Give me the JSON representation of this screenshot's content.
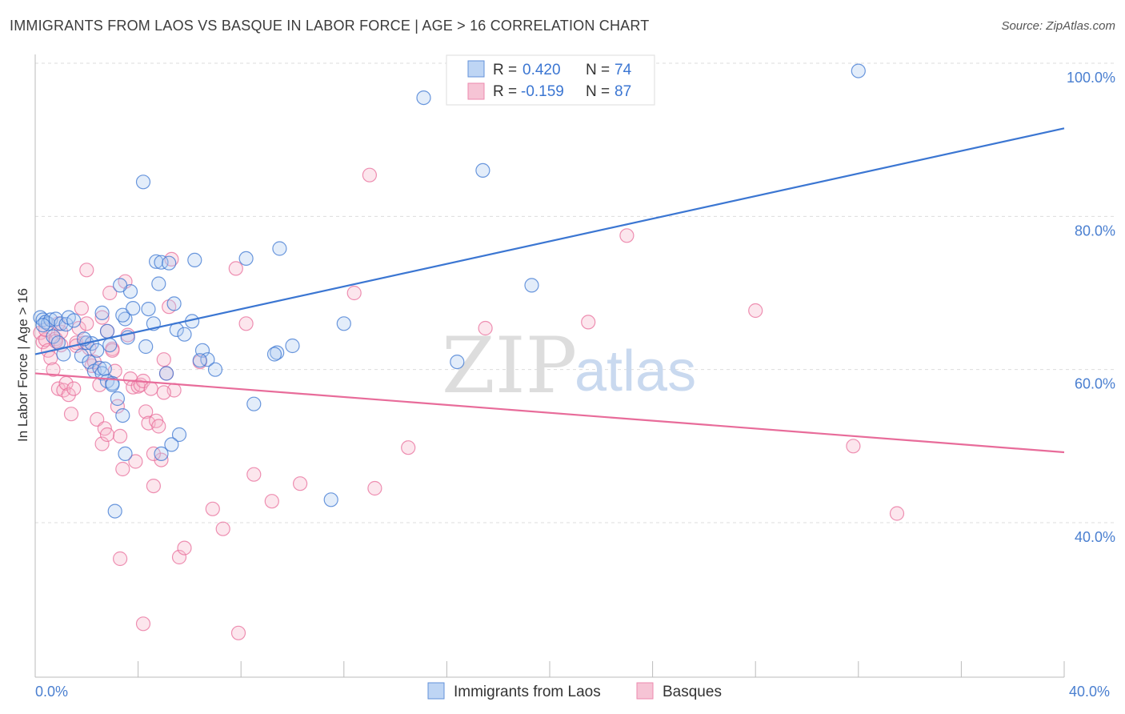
{
  "title": "IMMIGRANTS FROM LAOS VS BASQUE IN LABOR FORCE | AGE > 16 CORRELATION CHART",
  "source": "Source: ZipAtlas.com",
  "watermark": {
    "zip": "ZIP",
    "atlas": "atlas"
  },
  "colors": {
    "blue": "#3b76d2",
    "blue_fill": "#aecbf2",
    "pink": "#e86c9a",
    "pink_fill": "#f5b6cb",
    "grid": "#dddddd",
    "axis_text": "#4a7fd0"
  },
  "legend": {
    "rows": [
      {
        "r_label": "R =",
        "r_value": "0.420",
        "n_label": "N =",
        "n_value": "74"
      },
      {
        "r_label": "R =",
        "r_value": "-0.159",
        "n_label": "N =",
        "n_value": "87"
      }
    ]
  },
  "chart_data": {
    "type": "scatter",
    "title": "IMMIGRANTS FROM LAOS VS BASQUE IN LABOR FORCE | AGE > 16 CORRELATION CHART",
    "xlabel": "",
    "ylabel": "In Labor Force | Age > 16",
    "xlim": [
      0,
      40
    ],
    "ylim": [
      20,
      102
    ],
    "x_tick_labels": [
      "0.0%",
      "40.0%"
    ],
    "y_ticks": [
      40,
      60,
      80,
      100
    ],
    "y_tick_labels": [
      "40.0%",
      "60.0%",
      "80.0%",
      "100.0%"
    ],
    "grid": true,
    "legend_position": "top-center",
    "series": [
      {
        "name": "Immigrants from Laos",
        "color": "#3b76d2",
        "r": 0.42,
        "n": 74,
        "trend": {
          "x": [
            0,
            40
          ],
          "y": [
            62.0,
            91.5
          ]
        },
        "points": [
          [
            0.2,
            66.8
          ],
          [
            0.3,
            66.5
          ],
          [
            0.4,
            66.2
          ],
          [
            0.5,
            66.0
          ],
          [
            0.6,
            66.5
          ],
          [
            0.3,
            65.8
          ],
          [
            0.8,
            66.6
          ],
          [
            0.7,
            64.3
          ],
          [
            1.0,
            66.0
          ],
          [
            1.2,
            65.9
          ],
          [
            1.3,
            66.8
          ],
          [
            0.9,
            63.5
          ],
          [
            1.5,
            66.4
          ],
          [
            1.1,
            62.0
          ],
          [
            1.8,
            61.8
          ],
          [
            2.0,
            63.5
          ],
          [
            2.2,
            63.4
          ],
          [
            1.9,
            64.0
          ],
          [
            2.1,
            61.0
          ],
          [
            2.3,
            59.8
          ],
          [
            2.5,
            60.2
          ],
          [
            2.6,
            59.5
          ],
          [
            2.8,
            58.5
          ],
          [
            3.0,
            58.2
          ],
          [
            2.7,
            60.1
          ],
          [
            2.4,
            62.5
          ],
          [
            2.9,
            63.2
          ],
          [
            3.2,
            56.2
          ],
          [
            3.5,
            66.6
          ],
          [
            3.6,
            64.2
          ],
          [
            3.4,
            67.1
          ],
          [
            3.8,
            68.0
          ],
          [
            3.7,
            70.2
          ],
          [
            3.3,
            71.0
          ],
          [
            2.6,
            67.4
          ],
          [
            2.8,
            65.0
          ],
          [
            3.0,
            58.0
          ],
          [
            3.4,
            54.0
          ],
          [
            3.5,
            49.0
          ],
          [
            3.1,
            41.5
          ],
          [
            4.4,
            67.9
          ],
          [
            4.3,
            63.0
          ],
          [
            4.6,
            66.0
          ],
          [
            4.7,
            74.1
          ],
          [
            4.8,
            71.2
          ],
          [
            4.2,
            84.5
          ],
          [
            4.9,
            74.0
          ],
          [
            5.4,
            68.6
          ],
          [
            5.5,
            65.2
          ],
          [
            5.2,
            73.9
          ],
          [
            5.8,
            64.6
          ],
          [
            6.1,
            66.3
          ],
          [
            6.5,
            62.5
          ],
          [
            6.7,
            61.3
          ],
          [
            7.0,
            60.0
          ],
          [
            5.1,
            59.5
          ],
          [
            4.9,
            49.0
          ],
          [
            5.6,
            51.5
          ],
          [
            5.3,
            50.2
          ],
          [
            6.4,
            61.2
          ],
          [
            8.2,
            74.5
          ],
          [
            8.5,
            55.5
          ],
          [
            9.4,
            62.2
          ],
          [
            9.5,
            75.8
          ],
          [
            9.3,
            62.0
          ],
          [
            10.0,
            63.1
          ],
          [
            12.0,
            66.0
          ],
          [
            11.5,
            43.0
          ],
          [
            15.1,
            95.5
          ],
          [
            16.4,
            61.0
          ],
          [
            17.4,
            86.0
          ],
          [
            19.3,
            71.0
          ],
          [
            32.0,
            99.0
          ],
          [
            6.2,
            74.3
          ]
        ]
      },
      {
        "name": "Basques",
        "color": "#e86c9a",
        "r": -0.159,
        "n": 87,
        "trend": {
          "x": [
            0,
            40
          ],
          "y": [
            59.5,
            49.2
          ]
        },
        "points": [
          [
            0.2,
            64.8
          ],
          [
            0.3,
            63.6
          ],
          [
            0.4,
            63.9
          ],
          [
            0.5,
            62.5
          ],
          [
            0.6,
            61.5
          ],
          [
            0.7,
            60.0
          ],
          [
            0.8,
            64.0
          ],
          [
            0.9,
            57.5
          ],
          [
            1.0,
            63.2
          ],
          [
            1.1,
            57.3
          ],
          [
            1.2,
            58.2
          ],
          [
            1.3,
            56.7
          ],
          [
            1.4,
            54.2
          ],
          [
            1.5,
            57.5
          ],
          [
            1.6,
            63.5
          ],
          [
            1.7,
            65.4
          ],
          [
            1.8,
            68.0
          ],
          [
            1.9,
            63.5
          ],
          [
            2.0,
            66.0
          ],
          [
            2.1,
            62.8
          ],
          [
            2.2,
            60.5
          ],
          [
            2.3,
            61.0
          ],
          [
            2.4,
            53.5
          ],
          [
            2.5,
            58.0
          ],
          [
            2.6,
            50.3
          ],
          [
            2.7,
            52.3
          ],
          [
            2.8,
            65.0
          ],
          [
            2.9,
            70.0
          ],
          [
            3.0,
            62.7
          ],
          [
            3.1,
            59.8
          ],
          [
            3.2,
            55.2
          ],
          [
            3.3,
            51.3
          ],
          [
            3.4,
            47.0
          ],
          [
            3.5,
            71.5
          ],
          [
            3.6,
            64.5
          ],
          [
            3.7,
            58.8
          ],
          [
            3.8,
            57.7
          ],
          [
            3.9,
            48.0
          ],
          [
            4.0,
            57.8
          ],
          [
            4.1,
            58.0
          ],
          [
            4.2,
            58.5
          ],
          [
            4.3,
            54.5
          ],
          [
            4.4,
            53.0
          ],
          [
            4.5,
            57.5
          ],
          [
            4.6,
            44.8
          ],
          [
            4.7,
            53.3
          ],
          [
            4.8,
            52.6
          ],
          [
            4.9,
            48.2
          ],
          [
            5.0,
            61.3
          ],
          [
            5.1,
            59.5
          ],
          [
            5.2,
            68.2
          ],
          [
            5.3,
            74.4
          ],
          [
            5.4,
            57.3
          ],
          [
            5.6,
            35.5
          ],
          [
            5.8,
            36.7
          ],
          [
            6.4,
            61.0
          ],
          [
            6.9,
            41.8
          ],
          [
            7.3,
            39.2
          ],
          [
            7.8,
            73.2
          ],
          [
            7.9,
            25.6
          ],
          [
            8.2,
            66.0
          ],
          [
            8.5,
            46.3
          ],
          [
            9.2,
            42.8
          ],
          [
            10.3,
            45.1
          ],
          [
            12.4,
            70.0
          ],
          [
            13.2,
            44.5
          ],
          [
            14.5,
            49.8
          ],
          [
            17.5,
            65.4
          ],
          [
            21.5,
            66.2
          ],
          [
            23.0,
            77.5
          ],
          [
            28.0,
            67.7
          ],
          [
            31.8,
            50.0
          ],
          [
            33.5,
            41.2
          ],
          [
            13.0,
            85.4
          ],
          [
            4.2,
            26.8
          ],
          [
            3.3,
            35.3
          ],
          [
            1.6,
            63.1
          ],
          [
            1.0,
            64.9
          ],
          [
            0.8,
            63.7
          ],
          [
            2.0,
            73.0
          ],
          [
            2.6,
            66.8
          ],
          [
            0.4,
            65.2
          ],
          [
            3.0,
            62.5
          ],
          [
            0.9,
            66.0
          ],
          [
            5.0,
            57.0
          ],
          [
            4.6,
            49.0
          ],
          [
            2.8,
            51.5
          ]
        ]
      }
    ]
  },
  "bottom_legend": {
    "items": [
      {
        "label": "Immigrants from Laos"
      },
      {
        "label": "Basques"
      }
    ]
  }
}
